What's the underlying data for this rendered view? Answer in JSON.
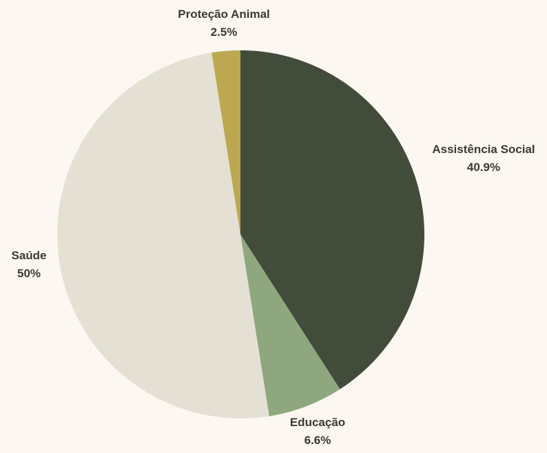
{
  "chart_data": {
    "type": "pie",
    "slices": [
      {
        "name": "Assistência Social",
        "value": 40.9,
        "label": "40.9%",
        "color": "#424c3b"
      },
      {
        "name": "Educação",
        "value": 6.6,
        "label": "6.6%",
        "color": "#8fa77e"
      },
      {
        "name": "Saúde",
        "value": 50,
        "label": "50%",
        "color": "#e5e0d4"
      },
      {
        "name": "Proteção Animal",
        "value": 2.5,
        "label": "2.5%",
        "color": "#bba850"
      }
    ],
    "start_angle": "12 o'clock",
    "direction": "clockwise"
  },
  "colors": {
    "background": "#fcf8f1",
    "label_text": "#3a3a32"
  }
}
